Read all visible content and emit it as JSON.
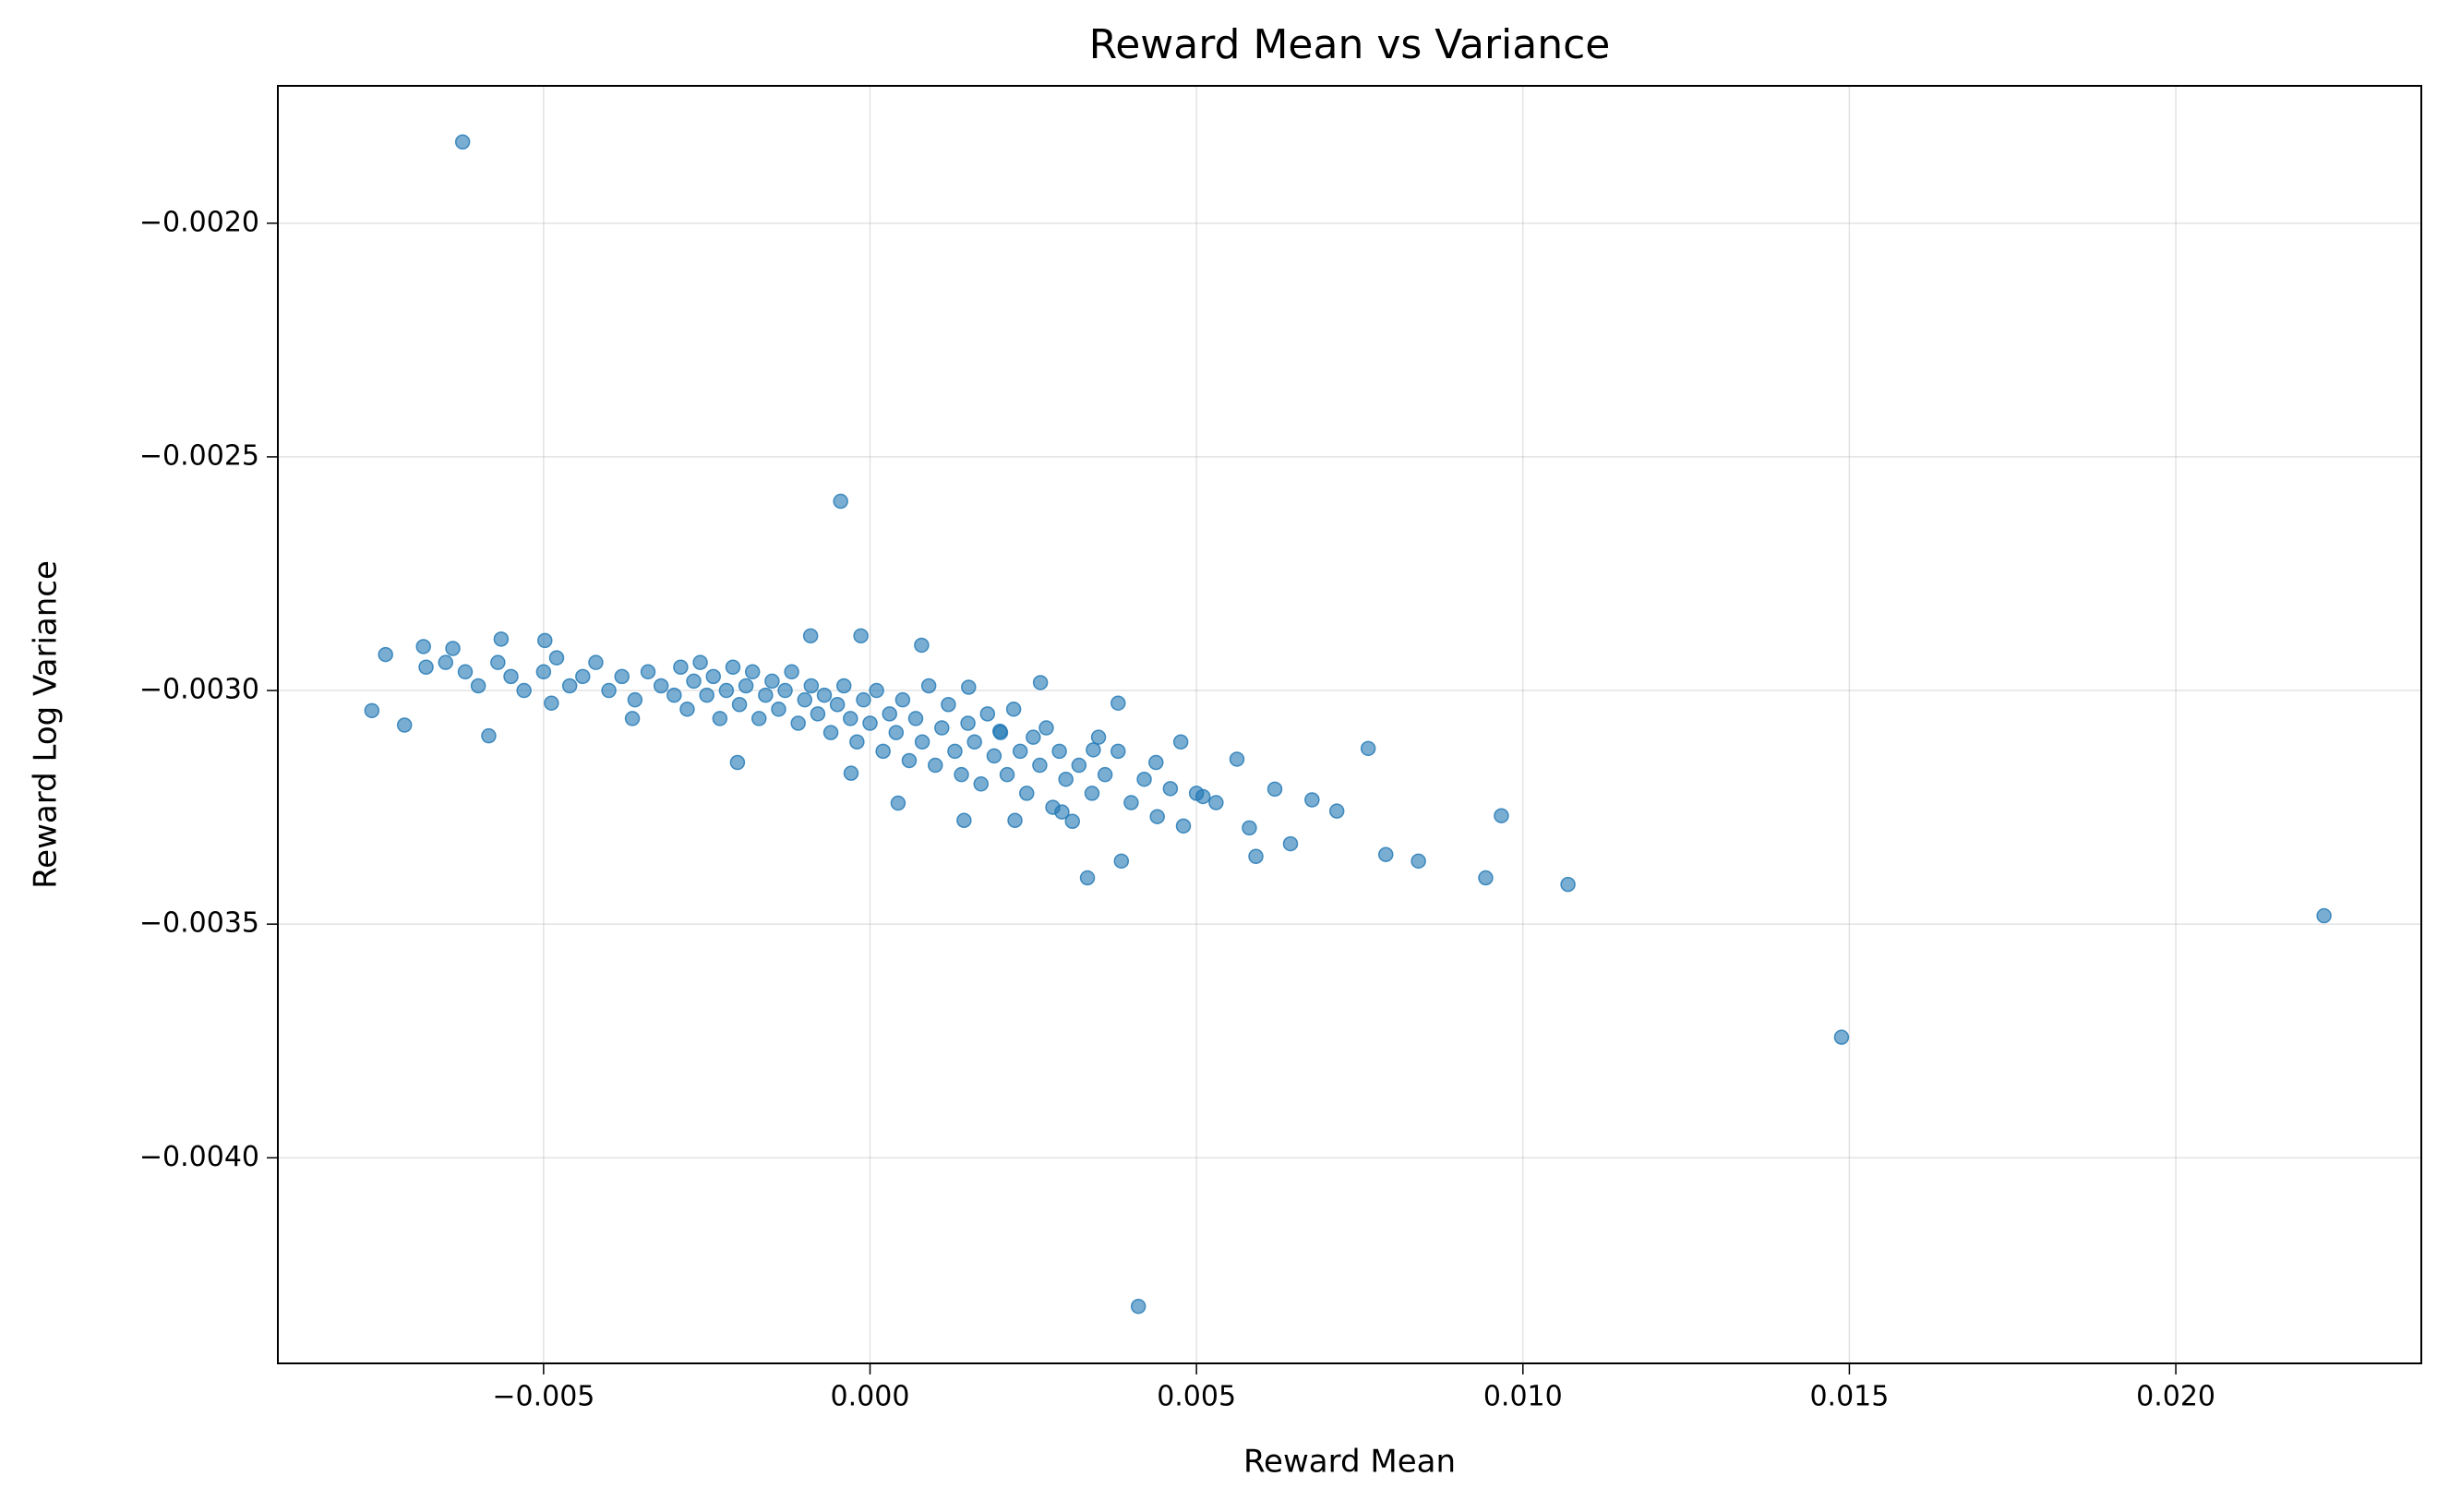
{
  "chart_data": {
    "type": "scatter",
    "title": "Reward Mean vs Variance",
    "x_label": "Reward Mean",
    "y_label": "Reward Log Variance",
    "color": "#1f77b4",
    "grid": true,
    "xlim": [
      -0.00907,
      0.02376
    ],
    "ylim": [
      -0.00444,
      -0.001706
    ],
    "xticks": [
      {
        "value": -0.005,
        "label": "−0.005"
      },
      {
        "value": 0,
        "label": "0.000"
      },
      {
        "value": 0.005,
        "label": "0.005"
      },
      {
        "value": 0.01,
        "label": "0.010"
      },
      {
        "value": 0.015,
        "label": "0.015"
      },
      {
        "value": 0.02,
        "label": "0.020"
      }
    ],
    "yticks": [
      {
        "value": -0.004,
        "label": "−0.0040"
      },
      {
        "value": -0.0035,
        "label": "−0.0035"
      },
      {
        "value": -0.003,
        "label": "−0.0030"
      },
      {
        "value": -0.0025,
        "label": "−0.0025"
      },
      {
        "value": -0.002,
        "label": "−0.0020"
      }
    ],
    "x": [
      -0.00624,
      -0.00045,
      0.00411,
      0.01488,
      0.02227,
      0.01069,
      0.00967,
      0.00943,
      0.0084,
      0.00763,
      -0.00763,
      -0.00713,
      -0.00742,
      -0.00584,
      -0.00203,
      0.00333,
      0.00385,
      0.0079,
      0.00715,
      0.00677,
      0.00644,
      0.0062,
      0.00591,
      0.00562,
      0.00581,
      0.0051,
      0.00476,
      0.00438,
      0.0038,
      0.00261,
      0.00079,
      -0.00014,
      -0.00091,
      -0.00498,
      -0.00565,
      -0.00684,
      -0.00639,
      -0.00488,
      -0.00364,
      0.00151,
      0.00199,
      0.00342,
      0.00294,
      0.00222,
      0.00144,
      0.00043,
      -0.00029,
      -0.0068,
      -0.0065,
      -0.0062,
      -0.006,
      -0.0057,
      -0.0055,
      -0.0053,
      -0.005,
      -0.0048,
      -0.0046,
      -0.0044,
      -0.0042,
      -0.004,
      -0.0038,
      -0.0036,
      -0.0034,
      -0.0032,
      -0.003,
      -0.0029,
      -0.0028,
      -0.0027,
      -0.0026,
      -0.0025,
      -0.0024,
      -0.0023,
      -0.0022,
      -0.0021,
      -0.002,
      -0.0019,
      -0.0018,
      -0.0017,
      -0.0016,
      -0.0015,
      -0.0014,
      -0.0013,
      -0.0012,
      -0.0011,
      -0.001,
      -0.0009,
      -0.0008,
      -0.0007,
      -0.0006,
      -0.0005,
      -0.0004,
      -0.0003,
      -0.0002,
      -0.0001,
      0,
      0.0001,
      0.0002,
      0.0003,
      0.0004,
      0.0005,
      0.0006,
      0.0007,
      0.0008,
      0.0009,
      0.001,
      0.0011,
      0.0012,
      0.0013,
      0.0014,
      0.0015,
      0.0016,
      0.0017,
      0.0018,
      0.0019,
      0.002,
      0.0021,
      0.0022,
      0.0023,
      0.0024,
      0.0025,
      0.0026,
      0.0027,
      0.0028,
      0.0029,
      0.003,
      0.0031,
      0.0032,
      0.0034,
      0.0035,
      0.0036,
      0.0038,
      0.004,
      0.0042,
      0.0044,
      0.0046,
      0.0048,
      0.005,
      0.0053
    ],
    "values": [
      -0.001826,
      -0.002595,
      -0.004318,
      -0.003742,
      -0.003482,
      -0.003415,
      -0.003268,
      -0.003401,
      -0.003365,
      -0.003124,
      -0.003043,
      -0.003074,
      -0.002923,
      -0.003097,
      -0.003154,
      -0.003401,
      -0.003365,
      -0.003351,
      -0.003258,
      -0.003234,
      -0.003328,
      -0.003211,
      -0.003355,
      -0.003147,
      -0.003294,
      -0.003227,
      -0.00311,
      -0.003154,
      -0.003027,
      -0.002983,
      -0.002903,
      -0.002883,
      -0.002883,
      -0.002893,
      -0.00289,
      -0.002906,
      -0.00291,
      -0.003027,
      -0.00306,
      -0.002993,
      -0.003087,
      -0.003127,
      -0.00326,
      -0.003278,
      -0.003278,
      -0.003241,
      -0.003177,
      -0.00295,
      -0.00294,
      -0.00296,
      -0.00299,
      -0.00294,
      -0.00297,
      -0.003,
      -0.00296,
      -0.00293,
      -0.00299,
      -0.00297,
      -0.00294,
      -0.003,
      -0.00297,
      -0.00302,
      -0.00296,
      -0.00299,
      -0.00301,
      -0.00295,
      -0.00304,
      -0.00298,
      -0.00294,
      -0.00301,
      -0.00297,
      -0.00306,
      -0.003,
      -0.00295,
      -0.00303,
      -0.00299,
      -0.00296,
      -0.00306,
      -0.00301,
      -0.00298,
      -0.00304,
      -0.003,
      -0.00296,
      -0.00307,
      -0.00302,
      -0.00299,
      -0.00305,
      -0.00301,
      -0.00309,
      -0.00303,
      -0.00299,
      -0.00306,
      -0.00311,
      -0.00302,
      -0.00307,
      -0.003,
      -0.00313,
      -0.00305,
      -0.00309,
      -0.00302,
      -0.00315,
      -0.00306,
      -0.00311,
      -0.00299,
      -0.00316,
      -0.00308,
      -0.00303,
      -0.00313,
      -0.00318,
      -0.00307,
      -0.00311,
      -0.0032,
      -0.00305,
      -0.00314,
      -0.00309,
      -0.00318,
      -0.00304,
      -0.00313,
      -0.00322,
      -0.0031,
      -0.00316,
      -0.00308,
      -0.00325,
      -0.00313,
      -0.00319,
      -0.00328,
      -0.00316,
      -0.00322,
      -0.0031,
      -0.00318,
      -0.00313,
      -0.00324,
      -0.00319,
      -0.00327,
      -0.00321,
      -0.00329,
      -0.00322,
      -0.00324
    ]
  }
}
